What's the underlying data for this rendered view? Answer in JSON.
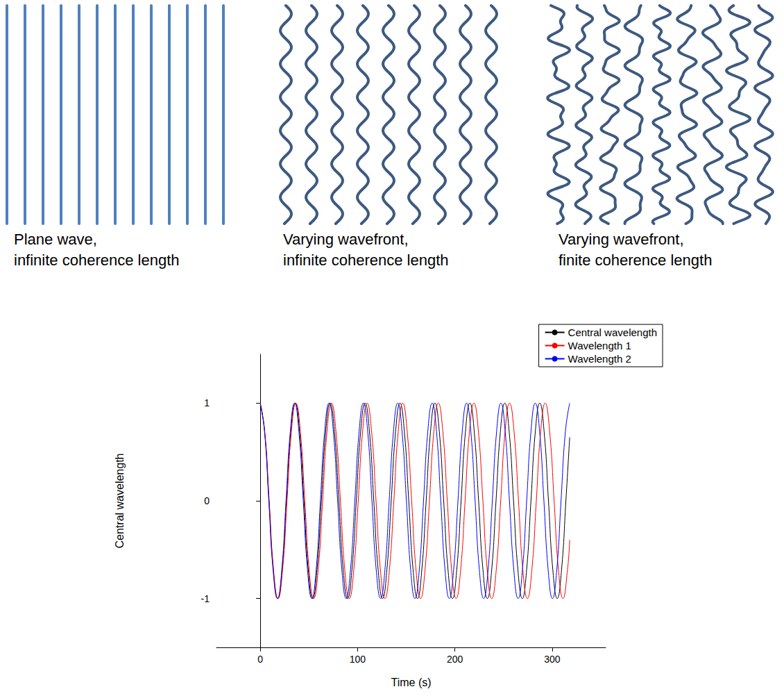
{
  "diagram": {
    "panels": [
      {
        "caption": [
          "Plane wave,",
          "infinite coherence length"
        ]
      },
      {
        "caption": [
          "Varying wavefront,",
          "infinite coherence length"
        ]
      },
      {
        "caption": [
          "Varying wavefront,",
          "finite coherence length"
        ]
      }
    ]
  },
  "chart_data": {
    "type": "line",
    "xlabel": "Time (s)",
    "ylabel": "Central wavelength",
    "xlim": [
      -45,
      355
    ],
    "xticks": [
      0,
      100,
      200,
      300
    ],
    "ylim": [
      -1.5,
      1.5
    ],
    "yticks": [
      -1,
      0,
      1
    ],
    "grid": false,
    "legend": "top-right",
    "series": [
      {
        "name": "Central wavelength",
        "color": "#000000",
        "x": [
          0,
          4.5,
          9.0,
          13.5,
          18.0,
          22.4,
          26.9,
          31.4,
          35.9,
          40.4,
          44.9,
          49.4,
          53.9,
          58.3,
          62.8,
          67.3,
          71.8,
          76.3,
          80.8,
          85.3,
          89.8,
          94.2,
          98.7,
          103.2,
          107.7,
          112.2,
          116.7,
          121.2,
          125.7,
          130.1,
          134.6,
          139.1,
          143.6,
          148.1,
          152.6,
          157.1,
          161.6,
          166.0,
          170.5,
          175.0,
          179.5,
          184.0,
          188.5,
          193.0,
          197.5,
          201.9,
          206.4,
          210.9,
          215.4,
          219.9,
          224.4,
          228.9,
          233.4,
          237.8,
          242.3,
          246.8,
          251.3,
          255.8,
          260.3,
          264.8,
          269.3,
          273.7,
          278.2,
          282.7,
          287.2,
          291.7,
          296.2,
          300.7,
          305.2,
          309.6,
          314.1,
          318
        ],
        "values": [
          1,
          0.71,
          0,
          -0.71,
          -1,
          -0.71,
          0,
          0.71,
          1,
          0.71,
          0,
          -0.71,
          -1,
          -0.71,
          0,
          0.71,
          1,
          0.71,
          0,
          -0.71,
          -1,
          -0.71,
          0,
          0.71,
          1,
          0.71,
          0,
          -0.71,
          -1,
          -0.71,
          0,
          0.71,
          1,
          0.71,
          0,
          -0.71,
          -1,
          -0.71,
          0,
          0.71,
          1,
          0.71,
          0,
          -0.71,
          -1,
          -0.71,
          0,
          0.71,
          1,
          0.71,
          0,
          -0.71,
          -1,
          -0.71,
          0,
          0.71,
          1,
          0.71,
          0,
          -0.71,
          -1,
          -0.71,
          0,
          0.71,
          1,
          0.71,
          0,
          -0.71,
          -1,
          -0.71,
          0,
          0.65
        ]
      },
      {
        "name": "Wavelength 1",
        "color": "#ff0000",
        "x": [
          0,
          4.6,
          9.2,
          13.7,
          18.3,
          22.9,
          27.5,
          32.0,
          36.6,
          41.2,
          45.8,
          50.3,
          54.9,
          59.5,
          64.1,
          68.6,
          73.2,
          77.8,
          82.4,
          86.9,
          91.5,
          96.1,
          100.7,
          105.2,
          109.8,
          114.4,
          119.0,
          123.5,
          128.1,
          132.7,
          137.3,
          141.8,
          146.4,
          151.0,
          155.6,
          160.1,
          164.7,
          169.3,
          173.9,
          178.4,
          183.0,
          187.6,
          192.2,
          196.7,
          201.3,
          205.9,
          210.5,
          215.0,
          219.6,
          224.2,
          228.8,
          233.3,
          237.9,
          242.5,
          247.1,
          251.6,
          256.2,
          260.8,
          265.4,
          269.9,
          274.5,
          279.1,
          283.7,
          288.2,
          292.8,
          297.4,
          302.0,
          306.5,
          311.1,
          315.7,
          318
        ],
        "values": [
          1,
          0.71,
          0,
          -0.71,
          -1,
          -0.71,
          0,
          0.71,
          1,
          0.71,
          0,
          -0.71,
          -1,
          -0.71,
          0,
          0.71,
          1,
          0.71,
          0,
          -0.71,
          -1,
          -0.71,
          0,
          0.71,
          1,
          0.71,
          0,
          -0.71,
          -1,
          -0.71,
          0,
          0.71,
          1,
          0.71,
          0,
          -0.71,
          -1,
          -0.71,
          0,
          0.71,
          1,
          0.71,
          0,
          -0.71,
          -1,
          -0.71,
          0,
          0.71,
          1,
          0.71,
          0,
          -0.71,
          -1,
          -0.71,
          0,
          0.71,
          1,
          0.71,
          0,
          -0.71,
          -1,
          -0.71,
          0,
          0.71,
          1,
          0.71,
          0,
          -0.71,
          -1,
          -0.71,
          -0.4
        ]
      },
      {
        "name": "Wavelength 2",
        "color": "#0000ff",
        "x": [
          0,
          4.4,
          8.8,
          13.2,
          17.7,
          22.1,
          26.5,
          30.9,
          35.3,
          39.7,
          44.2,
          48.6,
          53.0,
          57.4,
          61.8,
          66.2,
          70.7,
          75.1,
          79.5,
          83.9,
          88.3,
          92.7,
          97.2,
          101.6,
          106.0,
          110.4,
          114.8,
          119.2,
          123.7,
          128.1,
          132.5,
          136.9,
          141.3,
          145.7,
          150.2,
          154.6,
          159.0,
          163.4,
          167.8,
          172.2,
          176.7,
          181.1,
          185.5,
          189.9,
          194.3,
          198.7,
          203.2,
          207.6,
          212.0,
          216.4,
          220.8,
          225.2,
          229.6,
          234.1,
          238.5,
          242.9,
          247.3,
          251.7,
          256.1,
          260.6,
          265.0,
          269.4,
          273.8,
          278.2,
          282.6,
          287.1,
          291.5,
          295.9,
          300.3,
          304.7,
          309.1,
          313.6,
          318.0
        ],
        "values": [
          1,
          0.71,
          0,
          -0.71,
          -1,
          -0.71,
          0,
          0.71,
          1,
          0.71,
          0,
          -0.71,
          -1,
          -0.71,
          0,
          0.71,
          1,
          0.71,
          0,
          -0.71,
          -1,
          -0.71,
          0,
          0.71,
          1,
          0.71,
          0,
          -0.71,
          -1,
          -0.71,
          0,
          0.71,
          1,
          0.71,
          0,
          -0.71,
          -1,
          -0.71,
          0,
          0.71,
          1,
          0.71,
          0,
          -0.71,
          -1,
          -0.71,
          0,
          0.71,
          1,
          0.71,
          0,
          -0.71,
          -1,
          -0.71,
          0,
          0.71,
          1,
          0.71,
          0,
          -0.71,
          -1,
          -0.71,
          0,
          0.71,
          1,
          0.71,
          0,
          -0.71,
          -1,
          -0.71,
          0,
          0.71,
          1
        ]
      }
    ]
  }
}
